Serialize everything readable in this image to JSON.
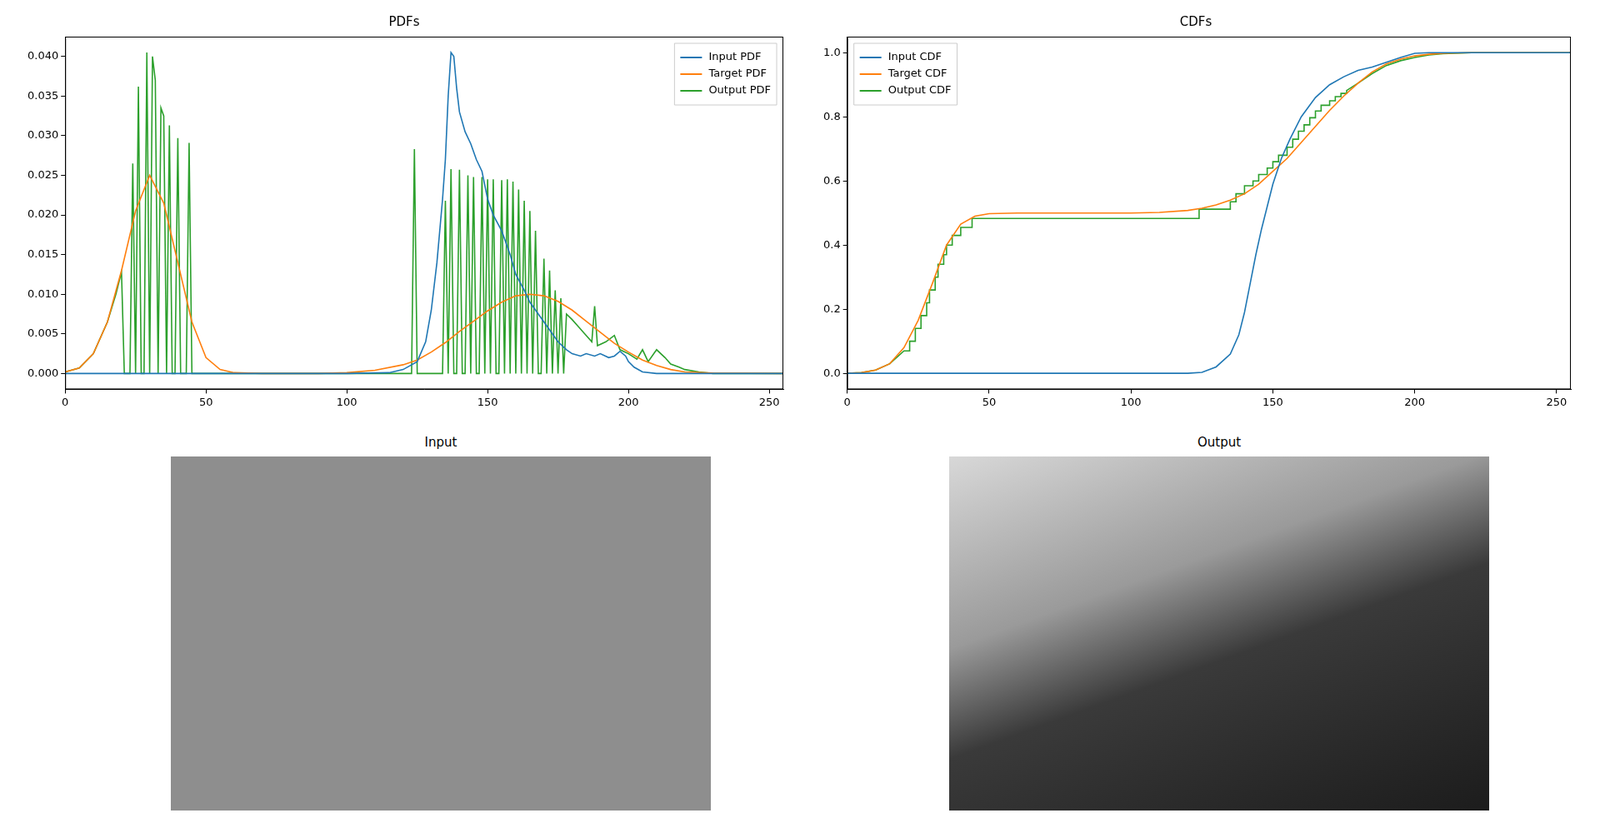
{
  "chart_data": [
    {
      "type": "line",
      "title": "PDFs",
      "legend": "upper right",
      "grid": false,
      "xlim": [
        0,
        255
      ],
      "xticks": [
        0,
        50,
        100,
        150,
        200,
        250
      ],
      "ylim": [
        -0.002,
        0.0425
      ],
      "yticks": [
        {
          "value": 0,
          "label": "0.000"
        },
        {
          "value": 0.005,
          "label": "0.005"
        },
        {
          "value": 0.01,
          "label": "0.010"
        },
        {
          "value": 0.015,
          "label": "0.015"
        },
        {
          "value": 0.02,
          "label": "0.020"
        },
        {
          "value": 0.025,
          "label": "0.025"
        },
        {
          "value": 0.03,
          "label": "0.030"
        },
        {
          "value": 0.035,
          "label": "0.035"
        },
        {
          "value": 0.04,
          "label": "0.040"
        }
      ],
      "series": [
        {
          "name": "Input PDF",
          "color": "#1f77b4",
          "x": [
            0,
            100,
            115,
            120,
            125,
            128,
            130,
            132,
            134,
            135,
            136,
            137,
            138,
            139,
            140,
            142,
            144,
            146,
            148,
            150,
            152,
            155,
            158,
            160,
            163,
            165,
            168,
            170,
            173,
            175,
            178,
            180,
            183,
            185,
            188,
            190,
            193,
            195,
            197,
            199,
            200,
            202,
            205,
            210,
            255
          ],
          "values": [
            0,
            0,
            0.0001,
            0.0005,
            0.0015,
            0.004,
            0.008,
            0.014,
            0.022,
            0.027,
            0.035,
            0.0405,
            0.04,
            0.036,
            0.033,
            0.0305,
            0.029,
            0.027,
            0.0255,
            0.022,
            0.02,
            0.018,
            0.015,
            0.0125,
            0.0105,
            0.009,
            0.0075,
            0.0065,
            0.005,
            0.004,
            0.003,
            0.0025,
            0.0022,
            0.0025,
            0.0022,
            0.0025,
            0.002,
            0.0022,
            0.0028,
            0.0022,
            0.0015,
            0.0008,
            0.0002,
            0,
            0
          ]
        },
        {
          "name": "Target PDF",
          "color": "#ff7f0e",
          "x": [
            0,
            5,
            10,
            15,
            20,
            25,
            30,
            35,
            40,
            45,
            50,
            55,
            60,
            70,
            90,
            100,
            110,
            120,
            125,
            130,
            135,
            140,
            145,
            150,
            155,
            160,
            165,
            170,
            175,
            180,
            185,
            190,
            195,
            200,
            205,
            210,
            215,
            220,
            230,
            255
          ],
          "values": [
            0.0002,
            0.0007,
            0.0025,
            0.0065,
            0.013,
            0.0205,
            0.025,
            0.0215,
            0.014,
            0.0065,
            0.002,
            0.0005,
            0.0001,
            0,
            0,
            0.0001,
            0.0004,
            0.0011,
            0.0017,
            0.0027,
            0.0039,
            0.0053,
            0.0066,
            0.0079,
            0.009,
            0.0098,
            0.01,
            0.0098,
            0.0091,
            0.008,
            0.0066,
            0.0052,
            0.0038,
            0.0027,
            0.0017,
            0.001,
            0.0005,
            0.0002,
            5e-05,
            0
          ]
        },
        {
          "name": "Output PDF",
          "color": "#2ca02c",
          "x": [
            0,
            5,
            10,
            15,
            18,
            20,
            21,
            23,
            24,
            25,
            26,
            27,
            28,
            29,
            30,
            31,
            32,
            33,
            34,
            35,
            36,
            37,
            38,
            39,
            40,
            41,
            43,
            44,
            45,
            123,
            124,
            125,
            134,
            135,
            136,
            137,
            138,
            139,
            140,
            141,
            142,
            143,
            144,
            145,
            146,
            147,
            148,
            149,
            150,
            151,
            152,
            153,
            154,
            155,
            156,
            157,
            158,
            159,
            160,
            161,
            162,
            163,
            164,
            165,
            166,
            167,
            168,
            169,
            170,
            171,
            172,
            173,
            174,
            175,
            176,
            177,
            178,
            180,
            182,
            185,
            187,
            188,
            189,
            192,
            195,
            197,
            200,
            203,
            205,
            207,
            210,
            213,
            215,
            218,
            220,
            225,
            230,
            255
          ],
          "values": [
            0.0002,
            0.0007,
            0.0025,
            0.0065,
            0.01,
            0.0128,
            0,
            0,
            0.0265,
            0,
            0.0362,
            0,
            0,
            0.0405,
            0,
            0.04,
            0.037,
            0,
            0.0335,
            0.0325,
            0,
            0.0313,
            0,
            0,
            0.0297,
            0,
            0,
            0.0291,
            0,
            0,
            0.0283,
            0,
            0,
            0.0218,
            0,
            0.0258,
            0,
            0,
            0.0257,
            0,
            0,
            0.025,
            0,
            0.0248,
            0,
            0,
            0.0248,
            0,
            0.0245,
            0,
            0.0245,
            0,
            0,
            0.0244,
            0,
            0.0245,
            0,
            0.0242,
            0,
            0.0232,
            0,
            0.0218,
            0,
            0.0205,
            0,
            0.018,
            0,
            0,
            0.0145,
            0,
            0.013,
            0,
            0.0105,
            0,
            0.0095,
            0,
            0.0075,
            0.0068,
            0.006,
            0.0048,
            0.004,
            0.0085,
            0.0035,
            0.004,
            0.0048,
            0.003,
            0.0025,
            0.0018,
            0.003,
            0.0015,
            0.003,
            0.002,
            0.0012,
            0.0008,
            0.0005,
            0.0002,
            0,
            0
          ]
        }
      ]
    },
    {
      "type": "line",
      "title": "CDFs",
      "legend": "upper left",
      "grid": false,
      "xlim": [
        0,
        255
      ],
      "xticks": [
        0,
        50,
        100,
        150,
        200,
        250
      ],
      "ylim": [
        -0.05,
        1.05
      ],
      "yticks": [
        {
          "value": 0,
          "label": "0.0"
        },
        {
          "value": 0.2,
          "label": "0.2"
        },
        {
          "value": 0.4,
          "label": "0.4"
        },
        {
          "value": 0.6,
          "label": "0.6"
        },
        {
          "value": 0.8,
          "label": "0.8"
        },
        {
          "value": 1,
          "label": "1.0"
        }
      ],
      "series": [
        {
          "name": "Input CDF",
          "color": "#1f77b4",
          "x": [
            0,
            120,
            125,
            130,
            135,
            138,
            140,
            142,
            144,
            146,
            148,
            150,
            153,
            156,
            160,
            165,
            170,
            175,
            180,
            185,
            190,
            195,
            200,
            205,
            255
          ],
          "values": [
            0,
            0,
            0.003,
            0.02,
            0.06,
            0.12,
            0.19,
            0.28,
            0.37,
            0.45,
            0.52,
            0.59,
            0.67,
            0.73,
            0.8,
            0.86,
            0.9,
            0.925,
            0.945,
            0.955,
            0.97,
            0.985,
            0.998,
            1.0,
            1.0
          ]
        },
        {
          "name": "Target CDF",
          "color": "#ff7f0e",
          "x": [
            0,
            5,
            10,
            15,
            20,
            25,
            30,
            35,
            40,
            45,
            50,
            60,
            100,
            110,
            120,
            125,
            130,
            135,
            140,
            145,
            150,
            155,
            160,
            165,
            170,
            175,
            180,
            185,
            190,
            195,
            200,
            205,
            210,
            220,
            255
          ],
          "values": [
            0,
            0.002,
            0.01,
            0.03,
            0.08,
            0.165,
            0.28,
            0.4,
            0.465,
            0.49,
            0.498,
            0.5,
            0.5,
            0.502,
            0.508,
            0.515,
            0.525,
            0.54,
            0.56,
            0.59,
            0.63,
            0.67,
            0.72,
            0.77,
            0.82,
            0.865,
            0.905,
            0.94,
            0.965,
            0.98,
            0.99,
            0.995,
            0.998,
            1.0,
            1.0
          ]
        },
        {
          "name": "Output CDF",
          "color": "#2ca02c",
          "x": [
            0,
            5,
            10,
            15,
            20,
            22,
            22,
            24,
            24,
            26,
            26,
            28,
            28,
            29,
            29,
            31,
            31,
            32,
            32,
            34,
            34,
            35,
            35,
            37,
            37,
            40,
            40,
            44,
            44,
            124,
            124,
            135,
            135,
            137,
            137,
            140,
            140,
            143,
            143,
            145,
            145,
            148,
            148,
            150,
            150,
            152,
            152,
            155,
            155,
            157,
            157,
            159,
            159,
            161,
            161,
            163,
            163,
            165,
            165,
            167,
            167,
            170,
            170,
            172,
            172,
            174,
            174,
            176,
            176,
            180,
            185,
            190,
            195,
            200,
            205,
            210,
            220,
            255
          ],
          "values": [
            0,
            0.002,
            0.01,
            0.03,
            0.07,
            0.07,
            0.1,
            0.1,
            0.14,
            0.14,
            0.18,
            0.18,
            0.22,
            0.22,
            0.26,
            0.26,
            0.3,
            0.3,
            0.34,
            0.34,
            0.37,
            0.37,
            0.4,
            0.4,
            0.43,
            0.43,
            0.455,
            0.455,
            0.483,
            0.483,
            0.512,
            0.512,
            0.535,
            0.535,
            0.56,
            0.56,
            0.585,
            0.585,
            0.6,
            0.6,
            0.62,
            0.62,
            0.64,
            0.64,
            0.66,
            0.66,
            0.68,
            0.68,
            0.705,
            0.705,
            0.73,
            0.73,
            0.755,
            0.755,
            0.775,
            0.775,
            0.797,
            0.797,
            0.818,
            0.818,
            0.836,
            0.836,
            0.85,
            0.85,
            0.863,
            0.863,
            0.873,
            0.873,
            0.882,
            0.905,
            0.935,
            0.96,
            0.975,
            0.985,
            0.993,
            0.997,
            1.0,
            1.0
          ]
        }
      ]
    }
  ],
  "images": [
    {
      "title": "Input"
    },
    {
      "title": "Output"
    }
  ]
}
